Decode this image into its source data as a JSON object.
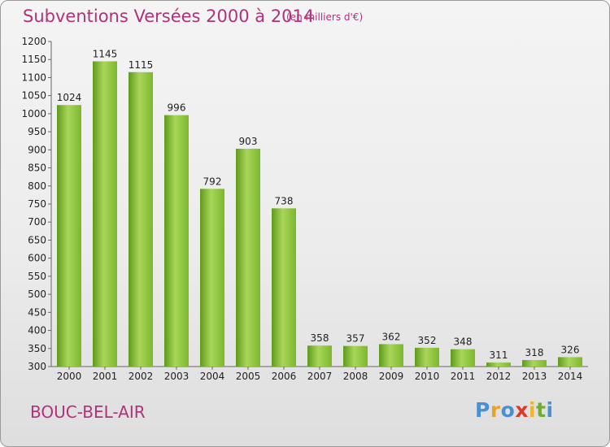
{
  "title": "Subventions Versées 2000 à 2014",
  "subtitle": "(en milliers d'€)",
  "commune": "BOUC-BEL-AIR",
  "logo": {
    "letters": [
      "P",
      "r",
      "o",
      "x",
      "i",
      "t",
      "i"
    ],
    "colors": [
      "#4a8fd6",
      "#e8a22c",
      "#4a8fd6",
      "#d93a2b",
      "#f0b52a",
      "#6fae2f",
      "#4a8fd6"
    ]
  },
  "colors": {
    "bar": "#7cb72e",
    "bar_light": "#a9d65a",
    "bar_dark": "#5e9a1c",
    "title": "#b2327a"
  },
  "chart_data": {
    "type": "bar",
    "categories": [
      "2000",
      "2001",
      "2002",
      "2003",
      "2004",
      "2005",
      "2006",
      "2007",
      "2008",
      "2009",
      "2010",
      "2011",
      "2012",
      "2013",
      "2014"
    ],
    "values": [
      1024,
      1145,
      1115,
      996,
      792,
      903,
      738,
      358,
      357,
      362,
      352,
      348,
      311,
      318,
      326
    ],
    "ylim": [
      300,
      1200
    ],
    "yticks": [
      300,
      350,
      400,
      450,
      500,
      550,
      600,
      650,
      700,
      750,
      800,
      850,
      900,
      950,
      1000,
      1050,
      1100,
      1150,
      1200
    ],
    "grid": false,
    "title": "Subventions Versées 2000 à 2014",
    "xlabel": "",
    "ylabel": ""
  }
}
